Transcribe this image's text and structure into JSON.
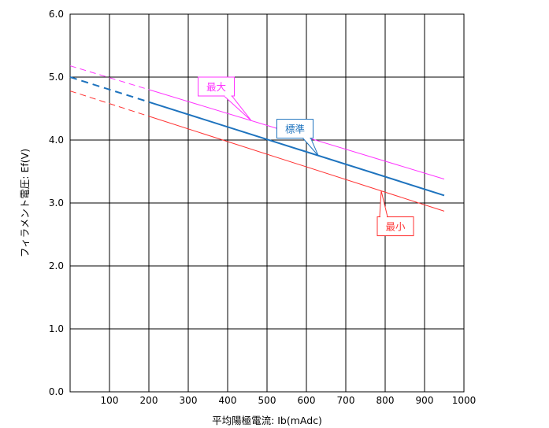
{
  "chart_data": {
    "type": "line",
    "xlabel": "平均陽極電流:  Ib(mAdc)",
    "ylabel": "フィラメント電圧:  Ef(V)",
    "xlim": [
      0,
      1000
    ],
    "ylim": [
      0.0,
      6.0
    ],
    "x_ticks": [
      "100",
      "200",
      "300",
      "400",
      "500",
      "600",
      "700",
      "800",
      "900",
      "1000"
    ],
    "y_ticks": [
      "0.0",
      "1.0",
      "2.0",
      "3.0",
      "4.0",
      "5.0",
      "6.0"
    ],
    "grid": true,
    "series": [
      {
        "name": "最大",
        "color": "#ff33ff",
        "x": [
          0,
          950
        ],
        "y": [
          5.18,
          3.38
        ],
        "dashed_until_x": 200,
        "width": 1
      },
      {
        "name": "標準",
        "color": "#1e73be",
        "x": [
          0,
          950
        ],
        "y": [
          5.0,
          3.12
        ],
        "dashed_until_x": 200,
        "width": 2
      },
      {
        "name": "最小",
        "color": "#ff3333",
        "x": [
          0,
          950
        ],
        "y": [
          4.78,
          2.87
        ],
        "dashed_until_x": 200,
        "width": 1
      }
    ],
    "annotations": [
      {
        "label": "最大",
        "color": "#ff33ff",
        "box_x": 325,
        "box_y": 5.0,
        "point_x": 460
      },
      {
        "label": "標準",
        "color": "#1e73be",
        "box_x": 525,
        "box_y": 4.33,
        "point_x": 630
      },
      {
        "label": "最小",
        "color": "#ff3333",
        "box_x": 780,
        "box_y": 2.78,
        "point_x": 790
      }
    ]
  }
}
